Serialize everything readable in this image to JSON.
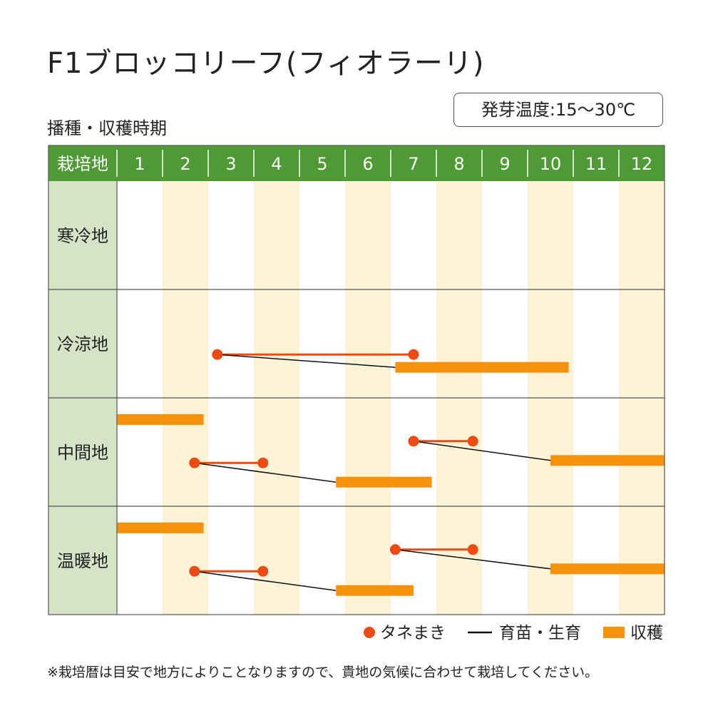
{
  "title": "F1ブロッコリーフ(フィオラーリ)",
  "subtitle": "播種・収穫時期",
  "germination_temp": "発芽温度:15〜30℃",
  "note": "※栽培暦は目安で地方によりことなりますので、貴地の気候に合わせて栽培してください。",
  "colors": {
    "header": "#4f9a34",
    "region_bg": "#d6e3c6",
    "stripe": "#fdf3d6",
    "sowing": "#ee4a14",
    "harvest": "#f7920f",
    "growing": "#111111",
    "sow_line": "#ee4a14"
  },
  "chart_data": {
    "type": "timeline",
    "header_label": "栽培地",
    "months": [
      "1",
      "2",
      "3",
      "4",
      "5",
      "6",
      "7",
      "8",
      "9",
      "10",
      "11",
      "12"
    ],
    "regions": [
      {
        "name": "寒冷地",
        "schedules": []
      },
      {
        "name": "冷涼地",
        "schedules": [
          {
            "sow_start": 3.2,
            "sow_end": 7.5,
            "harvest_start": 7.1,
            "harvest_end": 10.9
          }
        ]
      },
      {
        "name": "中間地",
        "schedules": [
          {
            "harvest_start": 1.0,
            "harvest_end": 2.9
          },
          {
            "sow_start": 7.5,
            "sow_end": 8.8,
            "harvest_start": 10.5,
            "harvest_end": 13.0
          },
          {
            "sow_start": 2.7,
            "sow_end": 4.2,
            "harvest_start": 5.8,
            "harvest_end": 7.9
          }
        ]
      },
      {
        "name": "温暖地",
        "schedules": [
          {
            "harvest_start": 1.0,
            "harvest_end": 2.9
          },
          {
            "sow_start": 7.1,
            "sow_end": 8.8,
            "harvest_start": 10.5,
            "harvest_end": 13.0
          },
          {
            "sow_start": 2.7,
            "sow_end": 4.2,
            "harvest_start": 5.8,
            "harvest_end": 7.5
          }
        ]
      }
    ],
    "legend": [
      {
        "key": "sowing",
        "label": "タネまき"
      },
      {
        "key": "growing",
        "label": "育苗・生育"
      },
      {
        "key": "harvest",
        "label": "収穫"
      }
    ]
  }
}
